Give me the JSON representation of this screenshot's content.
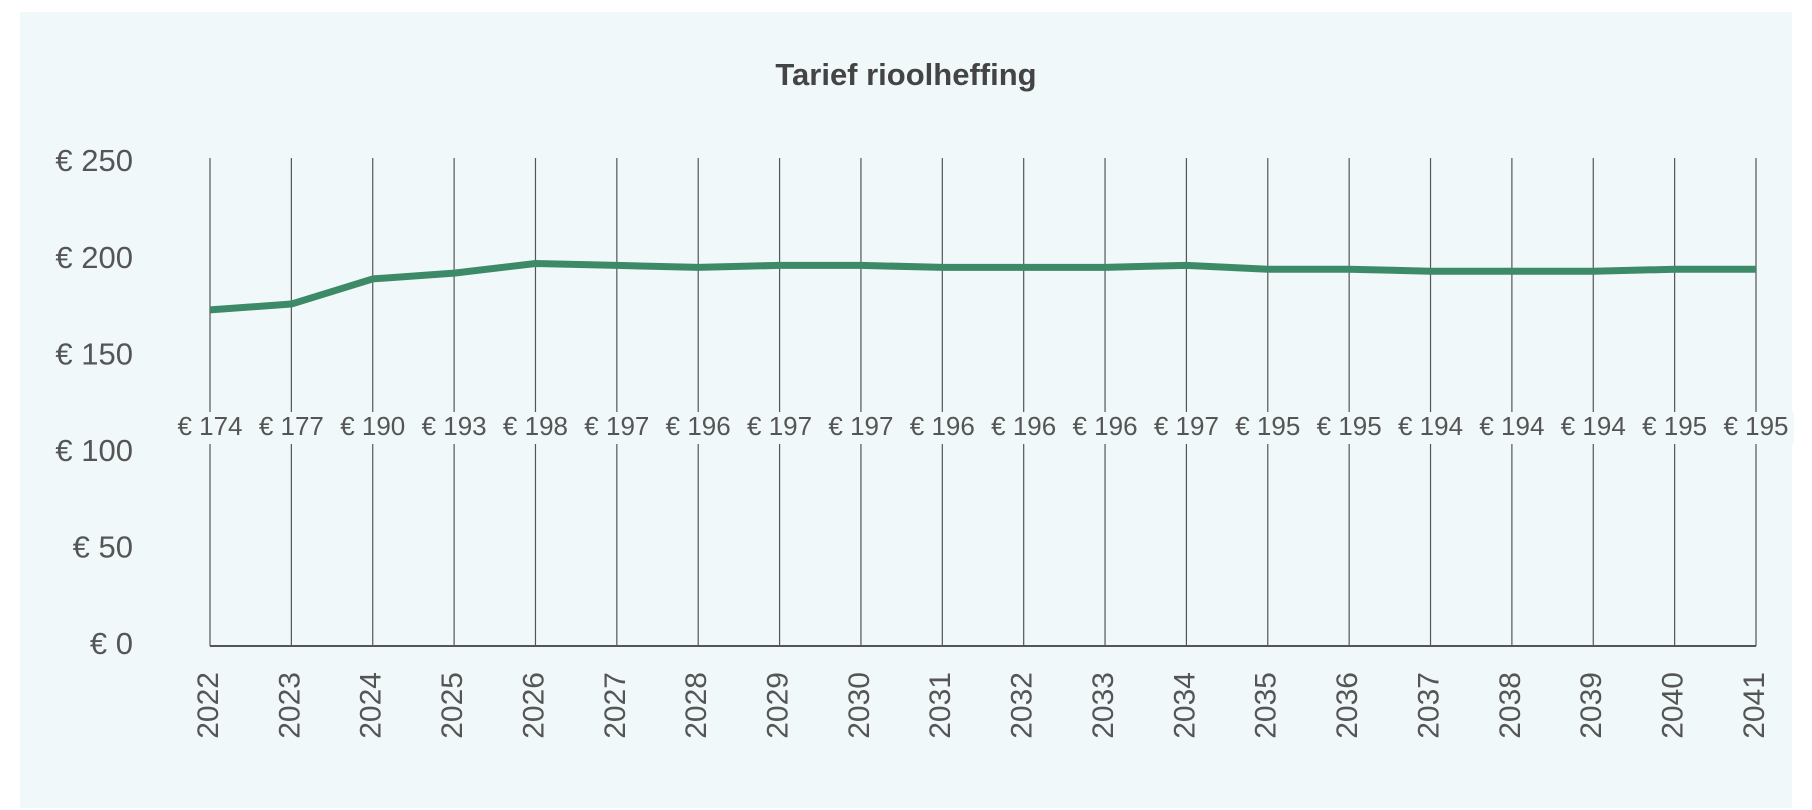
{
  "chart_data": {
    "type": "line",
    "title": "Tarief rioolheffing",
    "categories": [
      "2022",
      "2023",
      "2024",
      "2025",
      "2026",
      "2027",
      "2028",
      "2029",
      "2030",
      "2031",
      "2032",
      "2033",
      "2034",
      "2035",
      "2036",
      "2037",
      "2038",
      "2039",
      "2040",
      "2041"
    ],
    "values": [
      174,
      177,
      190,
      193,
      198,
      197,
      196,
      197,
      197,
      196,
      196,
      196,
      197,
      195,
      195,
      194,
      194,
      194,
      195,
      195
    ],
    "value_labels": [
      "€ 174",
      "€ 177",
      "€ 190",
      "€ 193",
      "€ 198",
      "€ 197",
      "€ 196",
      "€ 197",
      "€ 197",
      "€ 196",
      "€ 196",
      "€ 196",
      "€ 197",
      "€ 195",
      "€ 195",
      "€ 194",
      "€ 194",
      "€ 194",
      "€ 195",
      "€ 195"
    ],
    "color": "#3d8a68",
    "ylim": [
      0,
      250
    ],
    "yticks": [
      {
        "value": 0,
        "label": "€ 0"
      },
      {
        "value": 50,
        "label": "€ 50"
      },
      {
        "value": 100,
        "label": "€ 100"
      },
      {
        "value": 150,
        "label": "€ 150"
      },
      {
        "value": 200,
        "label": "€ 200"
      },
      {
        "value": 250,
        "label": "€ 250"
      }
    ]
  }
}
